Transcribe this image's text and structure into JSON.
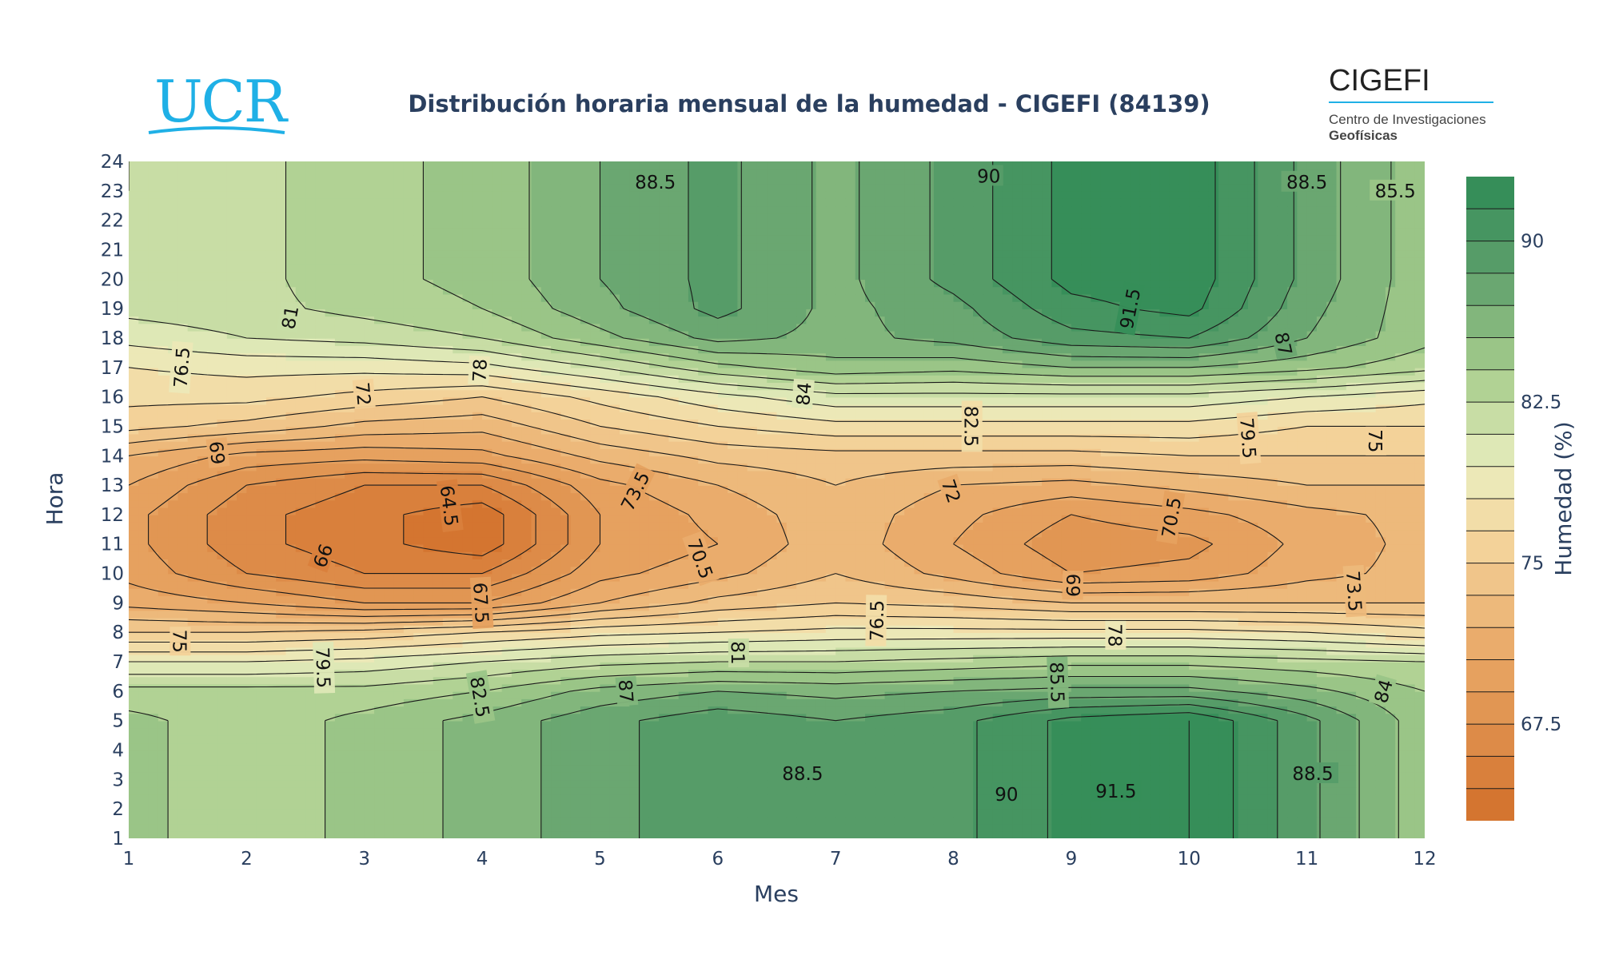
{
  "logos": {
    "left": {
      "text": "UCR",
      "color": "#1fb0e6"
    },
    "right": {
      "name": "CIGEFI",
      "line1": "Centro de Investigaciones",
      "line2": "Geofísicas",
      "accent": "#1fb0e6"
    }
  },
  "chart_data": {
    "type": "contour",
    "title": "Distribución horaria mensual de la humedad - CIGEFI (84139)",
    "xlabel": "Mes",
    "ylabel": "Hora",
    "colorbar_title": "Humedad (%)",
    "xlim": [
      1,
      12
    ],
    "ylim": [
      1,
      24
    ],
    "x_ticks": [
      "1",
      "2",
      "3",
      "4",
      "5",
      "6",
      "7",
      "8",
      "9",
      "10",
      "11",
      "12"
    ],
    "y_ticks": [
      "1",
      "2",
      "3",
      "4",
      "5",
      "6",
      "7",
      "8",
      "9",
      "10",
      "11",
      "12",
      "13",
      "14",
      "15",
      "16",
      "17",
      "18",
      "19",
      "20",
      "21",
      "22",
      "23",
      "24"
    ],
    "zlim": [
      63,
      93
    ],
    "contour_start": 63,
    "contour_step": 1.5,
    "colorbar_ticks": [
      "67.5",
      "75",
      "82.5",
      "90"
    ],
    "colorscale": [
      [
        0.0,
        "#d2702a"
      ],
      [
        0.25,
        "#e8a665"
      ],
      [
        0.45,
        "#f5d8a0"
      ],
      [
        0.55,
        "#e9edbe"
      ],
      [
        0.7,
        "#a6cc8c"
      ],
      [
        0.85,
        "#5ea06c"
      ],
      [
        1.0,
        "#2e8a55"
      ]
    ],
    "months": [
      1,
      2,
      3,
      4,
      5,
      6,
      7,
      8,
      9,
      10,
      11,
      12
    ],
    "hours": [
      1,
      2,
      3,
      4,
      5,
      6,
      7,
      8,
      9,
      10,
      11,
      12,
      13,
      14,
      15,
      16,
      17,
      18,
      19,
      20,
      21,
      22,
      23,
      24
    ],
    "z": [
      [
        84.5,
        83,
        84.5,
        86,
        88,
        89.5,
        88.5,
        89.5,
        92,
        93,
        89,
        84.5
      ],
      [
        84.5,
        83,
        84.5,
        86,
        88,
        89.5,
        88.5,
        89.5,
        92,
        93,
        89,
        84.5
      ],
      [
        84.5,
        83,
        84.5,
        86,
        88,
        89.5,
        88.5,
        89.5,
        92,
        93,
        89,
        84.5
      ],
      [
        84.5,
        83,
        84.5,
        86,
        88,
        89.5,
        88.5,
        89.5,
        92,
        93,
        89,
        84.5
      ],
      [
        84.5,
        83,
        84.5,
        86,
        88,
        89.5,
        88.5,
        89.5,
        92,
        93,
        89,
        84.5
      ],
      [
        83,
        83,
        83,
        84,
        86,
        87,
        86.5,
        87,
        87.5,
        87.5,
        86,
        84
      ],
      [
        79.5,
        79.5,
        80,
        81,
        82,
        82.5,
        82.5,
        83,
        83.5,
        83.5,
        83,
        82.5
      ],
      [
        75,
        75,
        75.5,
        76.5,
        77.5,
        78,
        78.5,
        78.5,
        78.5,
        78.5,
        78,
        77
      ],
      [
        71.5,
        70.5,
        69,
        69,
        72,
        74,
        75,
        74.5,
        73.5,
        73.5,
        73.5,
        73.5
      ],
      [
        70,
        67.5,
        66,
        66,
        70,
        71.5,
        73.5,
        71.5,
        69,
        69.5,
        71.5,
        72.5
      ],
      [
        69.5,
        66.5,
        65,
        63.5,
        69,
        70.5,
        73,
        70.5,
        68,
        68.5,
        71,
        72.5
      ],
      [
        69.5,
        66.5,
        65,
        63.5,
        69,
        71,
        73,
        71,
        69,
        70,
        71.5,
        72.5
      ],
      [
        70.5,
        67.5,
        66,
        66,
        70,
        72,
        73.5,
        72,
        71.5,
        72.5,
        73.5,
        73.5
      ],
      [
        72,
        70,
        69.5,
        70,
        72.5,
        74,
        74.5,
        74.5,
        74.5,
        75,
        75,
        75
      ],
      [
        75.5,
        74.5,
        73,
        72.5,
        75,
        76.5,
        77.5,
        77.5,
        77.5,
        77.5,
        76.5,
        76.5
      ],
      [
        77,
        77,
        76,
        75,
        77,
        79,
        80.5,
        80.5,
        80.5,
        80.5,
        79.5,
        78.5
      ],
      [
        78,
        78.5,
        78.5,
        79,
        81,
        83.5,
        85,
        84.5,
        85.5,
        85.5,
        84.5,
        83
      ],
      [
        80,
        81,
        81.5,
        82.5,
        85,
        87.5,
        86.5,
        87.5,
        89.5,
        90,
        87,
        84.5
      ],
      [
        81.5,
        82,
        83,
        84,
        86.5,
        89,
        86.5,
        88,
        91,
        92,
        87.5,
        84.5
      ],
      [
        82,
        82,
        83.5,
        84.5,
        87,
        89,
        86.5,
        89,
        92,
        92.5,
        88,
        84.5
      ],
      [
        82,
        82,
        83.5,
        84.5,
        87,
        89,
        86.5,
        89,
        92,
        92.5,
        88,
        84.5
      ],
      [
        82,
        82,
        83.5,
        84.5,
        87,
        89,
        86.5,
        89,
        92,
        92.5,
        88,
        84.5
      ],
      [
        82.5,
        82,
        83.5,
        84.5,
        87,
        89,
        86.5,
        89,
        92,
        92.5,
        88,
        84.5
      ],
      [
        82.5,
        82,
        83.5,
        84.5,
        87,
        89,
        86.5,
        89,
        92,
        92.5,
        88,
        84.5
      ]
    ],
    "contour_labels": [
      {
        "text": "81",
        "x": 2.37,
        "y": 18.7
      },
      {
        "text": "76.5",
        "x": 1.45,
        "y": 17.0
      },
      {
        "text": "78",
        "x": 3.98,
        "y": 16.9
      },
      {
        "text": "72",
        "x": 2.99,
        "y": 16.1
      },
      {
        "text": "69",
        "x": 1.75,
        "y": 14.1
      },
      {
        "text": "64.5",
        "x": 3.72,
        "y": 12.3
      },
      {
        "text": "66",
        "x": 2.65,
        "y": 10.6
      },
      {
        "text": "67.5",
        "x": 3.99,
        "y": 9.0
      },
      {
        "text": "70.5",
        "x": 5.85,
        "y": 10.5
      },
      {
        "text": "73.5",
        "x": 5.3,
        "y": 12.8
      },
      {
        "text": "75",
        "x": 1.43,
        "y": 7.7
      },
      {
        "text": "79.5",
        "x": 2.65,
        "y": 6.8
      },
      {
        "text": "82.5",
        "x": 3.98,
        "y": 5.8
      },
      {
        "text": "87",
        "x": 5.22,
        "y": 6.0
      },
      {
        "text": "81",
        "x": 6.17,
        "y": 7.3
      },
      {
        "text": "76.5",
        "x": 7.35,
        "y": 8.4
      },
      {
        "text": "84",
        "x": 6.73,
        "y": 16.1
      },
      {
        "text": "82.5",
        "x": 8.15,
        "y": 15.0
      },
      {
        "text": "72",
        "x": 7.98,
        "y": 12.8
      },
      {
        "text": "70.5",
        "x": 9.85,
        "y": 11.9
      },
      {
        "text": "69",
        "x": 9.02,
        "y": 9.6
      },
      {
        "text": "78",
        "x": 9.37,
        "y": 7.9
      },
      {
        "text": "85.5",
        "x": 8.88,
        "y": 6.3
      },
      {
        "text": "73.5",
        "x": 11.4,
        "y": 9.4
      },
      {
        "text": "84",
        "x": 11.65,
        "y": 6.0
      },
      {
        "text": "79.5",
        "x": 10.5,
        "y": 14.6
      },
      {
        "text": "75",
        "x": 11.58,
        "y": 14.5
      },
      {
        "text": "87",
        "x": 10.8,
        "y": 17.8
      },
      {
        "text": "91.5",
        "x": 9.5,
        "y": 19.0
      },
      {
        "text": "90",
        "x": 8.3,
        "y": 23.5
      },
      {
        "text": "88.5",
        "x": 5.47,
        "y": 23.3
      },
      {
        "text": "88.5",
        "x": 11.0,
        "y": 23.3
      },
      {
        "text": "85.5",
        "x": 11.75,
        "y": 23.0
      },
      {
        "text": "88.5",
        "x": 6.72,
        "y": 3.2
      },
      {
        "text": "90",
        "x": 8.45,
        "y": 2.5
      },
      {
        "text": "91.5",
        "x": 9.38,
        "y": 2.6
      },
      {
        "text": "88.5",
        "x": 11.05,
        "y": 3.2
      }
    ]
  }
}
